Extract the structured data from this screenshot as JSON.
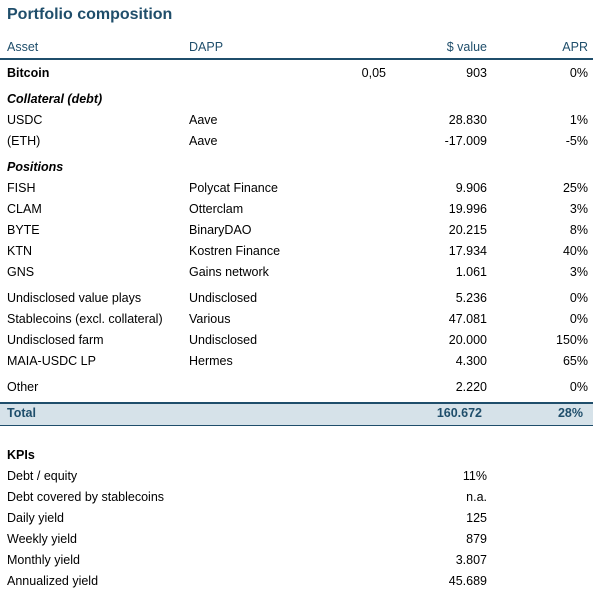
{
  "title": "Portfolio composition",
  "headers": {
    "asset": "Asset",
    "dapp": "DAPP",
    "value": "$ value",
    "apr": "APR"
  },
  "bitcoin": {
    "asset": "Bitcoin",
    "amount": "0,05",
    "value": "903",
    "apr": "0%"
  },
  "collateral": {
    "heading": "Collateral (debt)",
    "rows": [
      {
        "asset": "USDC",
        "dapp": "Aave",
        "value": "28.830",
        "apr": "1%"
      },
      {
        "asset": "(ETH)",
        "dapp": "Aave",
        "value": "-17.009",
        "apr": "-5%"
      }
    ]
  },
  "positions": {
    "heading": "Positions",
    "rows": [
      {
        "asset": "FISH",
        "dapp": "Polycat Finance",
        "value": "9.906",
        "apr": "25%"
      },
      {
        "asset": "CLAM",
        "dapp": "Otterclam",
        "value": "19.996",
        "apr": "3%"
      },
      {
        "asset": "BYTE",
        "dapp": "BinaryDAO",
        "value": "20.215",
        "apr": "8%"
      },
      {
        "asset": "KTN",
        "dapp": "Kostren Finance",
        "value": "17.934",
        "apr": "40%"
      },
      {
        "asset": "GNS",
        "dapp": "Gains network",
        "value": "1.061",
        "apr": "3%"
      }
    ]
  },
  "other_positions": [
    {
      "asset": "Undisclosed value plays",
      "dapp": "Undisclosed",
      "value": "5.236",
      "apr": "0%"
    },
    {
      "asset": "Stablecoins (excl. collateral)",
      "dapp": "Various",
      "value": "47.081",
      "apr": "0%"
    },
    {
      "asset": "Undisclosed farm",
      "dapp": "Undisclosed",
      "value": "20.000",
      "apr": "150%"
    },
    {
      "asset": "MAIA-USDC LP",
      "dapp": "Hermes",
      "value": "4.300",
      "apr": "65%"
    }
  ],
  "other": {
    "asset": "Other",
    "dapp": "",
    "value": "2.220",
    "apr": "0%"
  },
  "total": {
    "label": "Total",
    "value": "160.672",
    "apr": "28%"
  },
  "kpis": {
    "heading": "KPIs",
    "rows": [
      {
        "label": "Debt / equity",
        "value": "11%"
      },
      {
        "label": "Debt covered by stablecoins",
        "value": "n.a."
      },
      {
        "label": "Daily yield",
        "value": "125"
      },
      {
        "label": "Weekly yield",
        "value": "879"
      },
      {
        "label": "Monthly yield",
        "value": "3.807"
      },
      {
        "label": "Annualized yield",
        "value": "45.689"
      }
    ]
  }
}
